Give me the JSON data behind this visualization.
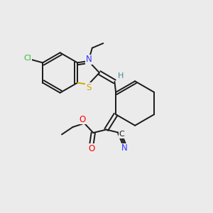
{
  "bg_color": "#ebebeb",
  "bond_color": "#1a1a1a",
  "atom_colors": {
    "N": "#3333ff",
    "O": "#ff0000",
    "S": "#ccaa00",
    "Cl": "#33bb33",
    "H": "#448888",
    "C": "#1a1a1a"
  },
  "lw": 1.4,
  "fs": 7.5
}
